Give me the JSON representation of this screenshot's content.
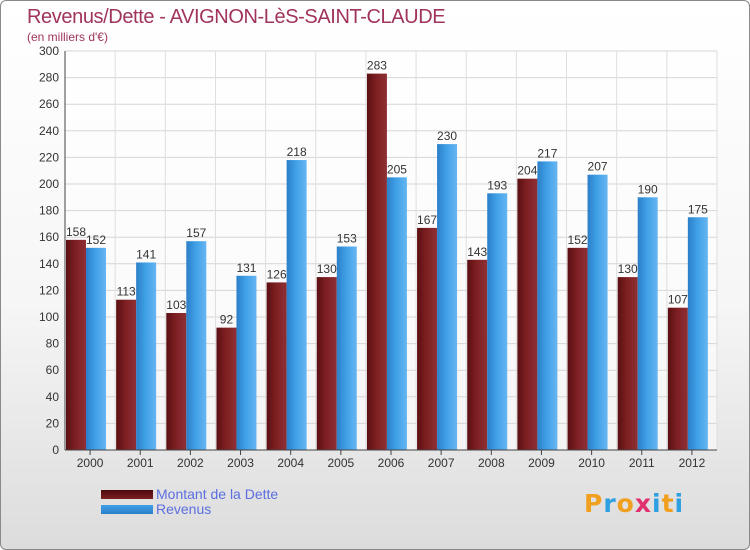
{
  "title": "Revenus/Dette - AVIGNON-LèS-SAINT-CLAUDE",
  "subtitle": "(en milliers d'€)",
  "logo_text": "Proxiti",
  "colors": {
    "dette": "#7d1f22",
    "revenus": "#3f9fe6",
    "title": "#a0345c",
    "legend_text": "#5b6ee0",
    "logo": [
      "#f0a01e",
      "#2e9fe0",
      "#f0a01e",
      "#e0306e",
      "#2e9fe0",
      "#f0a01e",
      "#2e9fe0"
    ]
  },
  "chart_data": {
    "type": "bar",
    "categories": [
      "2000",
      "2001",
      "2002",
      "2003",
      "2004",
      "2005",
      "2006",
      "2007",
      "2008",
      "2009",
      "2010",
      "2011",
      "2012"
    ],
    "series": [
      {
        "name": "Montant de la Dette",
        "values": [
          158,
          113,
          103,
          92,
          126,
          130,
          283,
          167,
          143,
          204,
          152,
          130,
          107
        ]
      },
      {
        "name": "Revenus",
        "values": [
          152,
          141,
          157,
          131,
          218,
          153,
          205,
          230,
          193,
          217,
          207,
          190,
          175
        ]
      }
    ],
    "ylim": [
      0,
      300
    ],
    "yticks": [
      0,
      20,
      40,
      60,
      80,
      100,
      120,
      140,
      160,
      180,
      200,
      220,
      240,
      260,
      280,
      300
    ],
    "grid": true,
    "legend_position": "bottom-left"
  }
}
